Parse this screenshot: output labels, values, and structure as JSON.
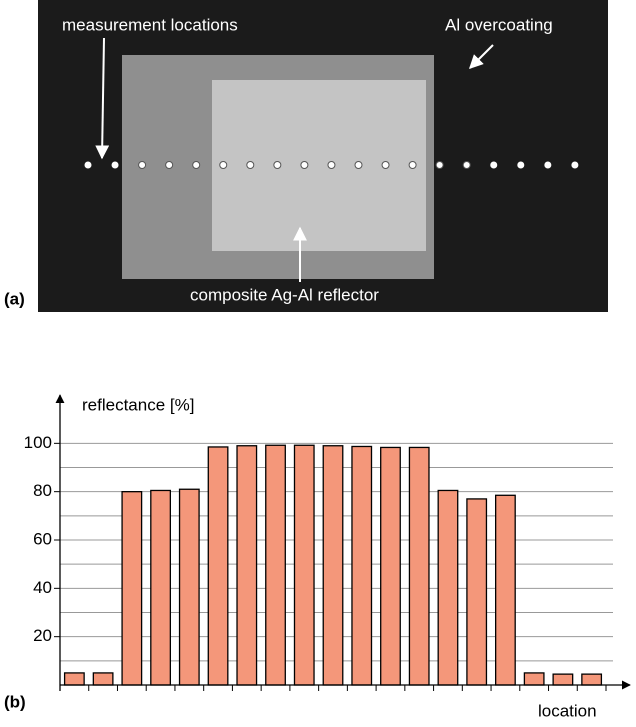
{
  "photo": {
    "panel_label": "(a)",
    "annotations": [
      "measurement locations",
      "Al overcoating",
      "composite Ag-Al reflector"
    ]
  },
  "chart_data": {
    "type": "bar",
    "panel_label": "(b)",
    "ylabel": "reflectance [%]",
    "xlabel": "location",
    "categories": [
      null,
      null,
      null,
      null,
      null,
      null,
      null,
      null,
      null,
      null,
      null,
      null,
      null,
      null,
      null,
      null,
      null,
      null,
      null
    ],
    "values": [
      5,
      5,
      80,
      80.5,
      81,
      98.5,
      99,
      99.2,
      99.2,
      99,
      98.7,
      98.3,
      98.3,
      80.5,
      77,
      78.5,
      5,
      4.5,
      4.5
    ],
    "color": "#f4977a",
    "ylim": [
      0,
      120
    ],
    "yticks": [
      20,
      40,
      60,
      80,
      100
    ],
    "minor_yticks": [
      10,
      30,
      50,
      70,
      90
    ],
    "grid": true
  }
}
